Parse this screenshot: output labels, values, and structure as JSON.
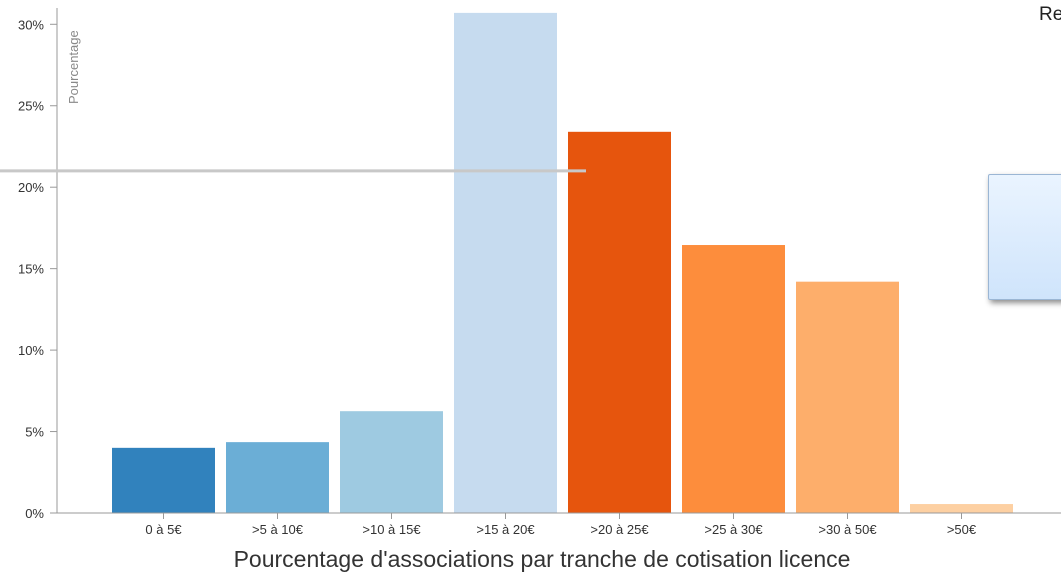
{
  "chart_data": {
    "type": "bar",
    "categories": [
      "0 à 5€",
      ">5 à 10€",
      ">10 à 15€",
      ">15 à 20€",
      ">20 à 25€",
      ">25 à 30€",
      ">30 à 50€",
      ">50€"
    ],
    "values": [
      4.0,
      4.35,
      6.25,
      30.7,
      23.4,
      16.45,
      14.2,
      0.55
    ],
    "colors": [
      "#3182bd",
      "#6baed6",
      "#9ecae1",
      "#c6dbef",
      "#e6550d",
      "#fd8d3c",
      "#fdae6b",
      "#fdd0a2"
    ],
    "ylabel": "Pourcentage",
    "xlabel": "Pourcentage d'associations par tranche de cotisation licence",
    "ylim": [
      0,
      31
    ],
    "yticks": [
      0,
      5,
      10,
      15,
      20,
      25,
      30
    ],
    "ytick_labels": [
      "0%",
      "5%",
      "10%",
      "15%",
      "20%",
      "25%",
      "30%"
    ],
    "reference_line": 21,
    "grid": false
  },
  "corner_text": "Re"
}
